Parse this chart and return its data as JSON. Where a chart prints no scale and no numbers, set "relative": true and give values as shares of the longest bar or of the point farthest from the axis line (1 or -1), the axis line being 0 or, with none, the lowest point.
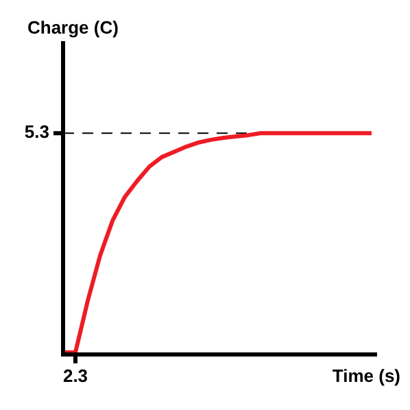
{
  "chart_data": {
    "type": "line",
    "xlabel": "Time (s)",
    "relative": true,
    "legend": false,
    "marker": "none",
    "line_style": "solid",
    "categories": [
      null,
      null,
      null,
      null,
      null,
      null,
      null,
      null,
      null,
      null,
      null,
      null,
      null,
      null,
      null,
      null,
      null,
      null,
      null,
      null,
      null,
      null,
      null,
      null,
      null,
      null
    ],
    "series": [
      {
        "color": "#ee1c25",
        "values": [
          0,
          0,
          0.236,
          0.442,
          0.6,
          0.709,
          0.782,
          0.848,
          0.891,
          0.915,
          0.939,
          0.958,
          0.97,
          0.979,
          0.985,
          0.991,
          1,
          1,
          1,
          1,
          1,
          1,
          1,
          1,
          1,
          1
        ]
      }
    ],
    "ref_lines": [
      {
        "axis": "y",
        "value": 1,
        "color": "#000000",
        "line_style": "dashed"
      }
    ],
    "annotations": [
      "Charge (C)",
      "5.3",
      "2.3"
    ]
  }
}
